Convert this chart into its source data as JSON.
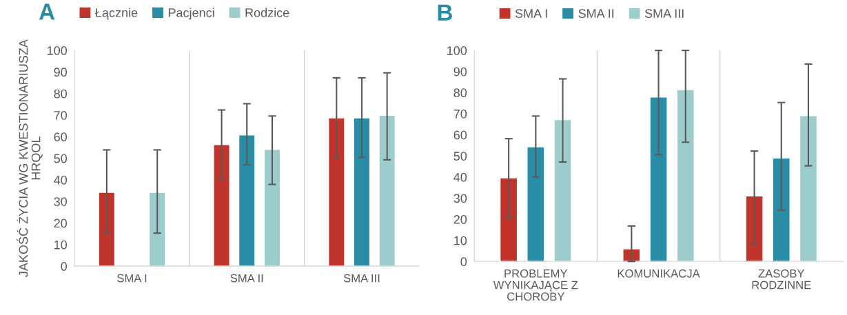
{
  "chart_data": [
    {
      "type": "bar",
      "title": "A",
      "ylabel": "JAKOŚĆ ŻYCIA WG KWESTIONARIUSZA\nHRQOL",
      "categories": [
        "SMA I",
        "SMA II",
        "SMA III"
      ],
      "ylim": [
        0,
        100
      ],
      "yticks": [
        0,
        10,
        20,
        30,
        40,
        50,
        60,
        70,
        80,
        90,
        100
      ],
      "grid": "x",
      "legend": "top",
      "series": [
        {
          "name": "Łącznie",
          "color": "#c0342c",
          "values": [
            34.2,
            56.3,
            68.7
          ],
          "errors": [
            [
              15.3,
              53.9
            ],
            [
              40.1,
              72.4
            ],
            [
              50.4,
              87.3
            ]
          ]
        },
        {
          "name": "Pacjenci",
          "color": "#2a8da6",
          "values": [
            null,
            60.8,
            68.7
          ],
          "errors": [
            null,
            [
              47.0,
              75.3
            ],
            [
              50.4,
              87.3
            ]
          ]
        },
        {
          "name": "Rodzice",
          "color": "#9dcccc",
          "values": [
            34.2,
            54.1,
            69.9
          ],
          "errors": [
            [
              15.3,
              53.9
            ],
            [
              37.9,
              69.6
            ],
            [
              49.3,
              89.6
            ]
          ]
        }
      ]
    },
    {
      "type": "bar",
      "title": "B",
      "categories": [
        "PROBLEMY\nWYNIKAJĄCE Z\nCHOROBY",
        "KOMUNIKACJA",
        "ZASOBY\nRODZINNE"
      ],
      "ylim": [
        0,
        100
      ],
      "yticks": [
        0,
        10,
        20,
        30,
        40,
        50,
        60,
        70,
        80,
        90,
        100
      ],
      "grid": "x",
      "legend": "top",
      "series": [
        {
          "name": "SMA I",
          "color": "#c0342c",
          "values": [
            39.6,
            6.0,
            31.0
          ],
          "errors": [
            [
              20.8,
              58.2
            ],
            [
              0,
              16.8
            ],
            [
              8.2,
              52.3
            ]
          ]
        },
        {
          "name": "SMA II",
          "color": "#2a8da6",
          "values": [
            54.3,
            77.9,
            49.0
          ],
          "errors": [
            [
              40.0,
              68.9
            ],
            [
              50.6,
              100
            ],
            [
              24.3,
              75.3
            ]
          ]
        },
        {
          "name": "SMA III",
          "color": "#9dcccc",
          "values": [
            67.2,
            81.4,
            69.1
          ],
          "errors": [
            [
              47.1,
              86.5
            ],
            [
              56.5,
              100
            ],
            [
              45.3,
              93.5
            ]
          ]
        }
      ]
    }
  ]
}
